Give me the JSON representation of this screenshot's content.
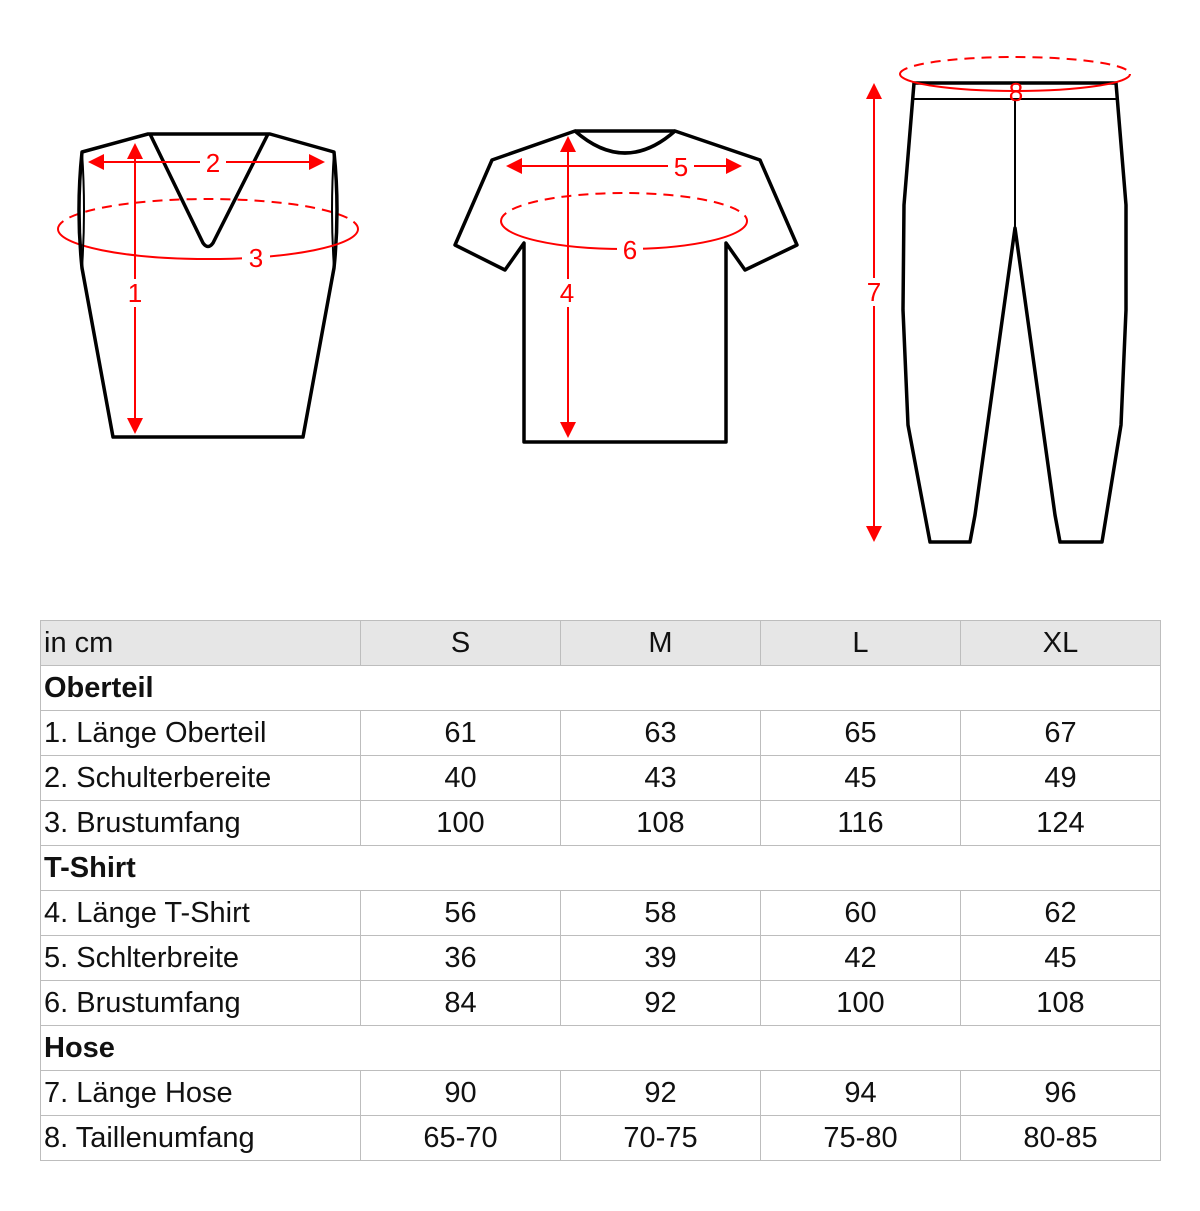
{
  "diagram_labels": {
    "vest": {
      "length": "1",
      "shoulder": "2",
      "chest": "3"
    },
    "tshirt": {
      "length": "4",
      "shoulder": "5",
      "chest": "6"
    },
    "pants": {
      "length": "7",
      "waist": "8"
    }
  },
  "colors": {
    "measure": "#ff0000",
    "outline": "#000000",
    "header_bg": "#e6e6e6"
  },
  "table": {
    "headers": [
      "in cm",
      "S",
      "M",
      "L",
      "XL"
    ],
    "sections": [
      {
        "title": "Oberteil",
        "rows": [
          {
            "label": "1. Länge Oberteil",
            "values": [
              "61",
              "63",
              "65",
              "67"
            ]
          },
          {
            "label": "2. Schulterbereite",
            "values": [
              "40",
              "43",
              "45",
              "49"
            ]
          },
          {
            "label": "3. Brustumfang",
            "values": [
              "100",
              "108",
              "116",
              "124"
            ]
          }
        ]
      },
      {
        "title": "T-Shirt",
        "rows": [
          {
            "label": "4. Länge T-Shirt",
            "values": [
              "56",
              "58",
              "60",
              "62"
            ]
          },
          {
            "label": "5. Schlterbreite",
            "values": [
              "36",
              "39",
              "42",
              "45"
            ]
          },
          {
            "label": "6. Brustumfang",
            "values": [
              "84",
              "92",
              "100",
              "108"
            ]
          }
        ]
      },
      {
        "title": "Hose",
        "rows": [
          {
            "label": "7. Länge Hose",
            "values": [
              "90",
              "92",
              "94",
              "96"
            ]
          },
          {
            "label": "8. Taillenumfang",
            "values": [
              "65-70",
              "70-75",
              "75-80",
              "80-85"
            ]
          }
        ]
      }
    ]
  }
}
